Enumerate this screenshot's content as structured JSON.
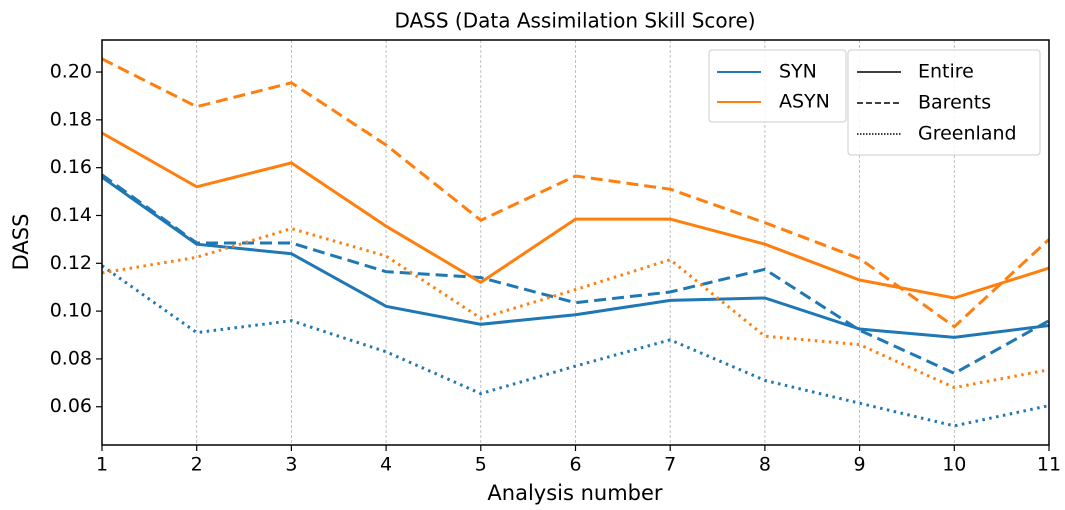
{
  "chart_data": {
    "type": "line",
    "title": "DASS (Data Assimilation Skill Score)",
    "xlabel": "Analysis number",
    "ylabel": "DASS",
    "x": [
      1,
      2,
      3,
      4,
      5,
      6,
      7,
      8,
      9,
      10,
      11
    ],
    "xlim": [
      1,
      11
    ],
    "xticks": [
      1,
      2,
      3,
      4,
      5,
      6,
      7,
      8,
      9,
      10,
      11
    ],
    "ylim": [
      0.044,
      0.2134
    ],
    "yticks": [
      0.06,
      0.08,
      {
        "value": 0.1,
        "label": "0.10"
      },
      0.12,
      0.14,
      0.16,
      0.18,
      {
        "value": 0.2,
        "label": "0.20"
      }
    ],
    "x_grid": true,
    "grid_style": "dashed",
    "styles": [
      {
        "name": "Entire",
        "dash": "solid"
      },
      {
        "name": "Barents",
        "dash": "dashed"
      },
      {
        "name": "Greenland",
        "dash": "dotted"
      }
    ],
    "groups": [
      {
        "name": "SYN",
        "color": "#1f77b4",
        "values": [
          [
            0.156,
            0.128,
            0.124,
            0.102,
            0.0945,
            0.0985,
            0.1045,
            0.1055,
            0.0925,
            0.089,
            0.094
          ],
          [
            0.157,
            0.1285,
            0.1285,
            0.1165,
            0.114,
            0.1035,
            0.108,
            0.1175,
            0.092,
            0.074,
            0.096
          ],
          [
            0.119,
            0.091,
            0.096,
            0.083,
            0.0655,
            0.077,
            0.088,
            0.071,
            0.0615,
            0.052,
            0.0605
          ]
        ]
      },
      {
        "name": "ASYN",
        "color": "#ff7f0e",
        "values": [
          [
            0.1745,
            0.152,
            0.162,
            0.1355,
            0.112,
            0.1385,
            0.1385,
            0.128,
            0.113,
            0.1055,
            0.118
          ],
          [
            0.2055,
            0.1855,
            0.1955,
            0.1695,
            0.138,
            0.1565,
            0.151,
            0.137,
            0.122,
            0.0935,
            0.13
          ],
          [
            0.116,
            0.1225,
            0.1345,
            0.123,
            0.097,
            0.109,
            0.1215,
            0.0895,
            0.086,
            0.068,
            0.0755
          ]
        ]
      }
    ]
  }
}
